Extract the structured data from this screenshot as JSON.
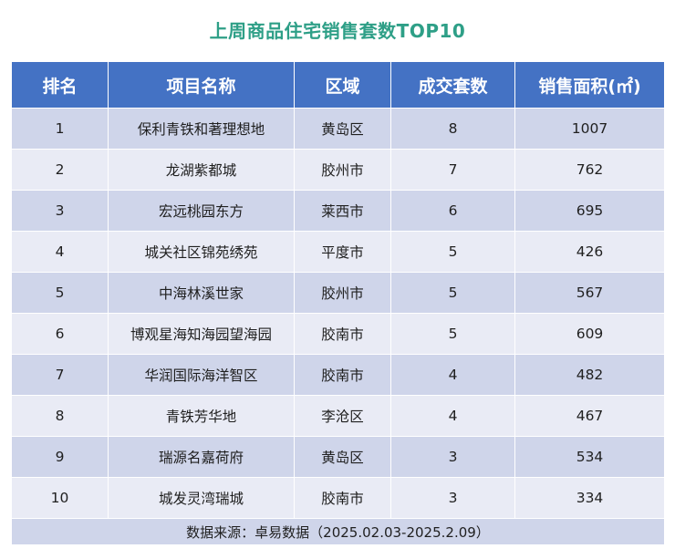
{
  "title": "上周商品住宅销售套数TOP10",
  "chart_data": {
    "type": "table",
    "title": "上周商品住宅销售套数TOP10",
    "columns": [
      "排名",
      "项目名称",
      "区域",
      "成交套数",
      "销售面积(㎡)"
    ],
    "rows": [
      [
        "1",
        "保利青铁和著理想地",
        "黄岛区",
        "8",
        "1007"
      ],
      [
        "2",
        "龙湖紫都城",
        "胶州市",
        "7",
        "762"
      ],
      [
        "3",
        "宏远桃园东方",
        "莱西市",
        "6",
        "695"
      ],
      [
        "4",
        "城关社区锦苑绣苑",
        "平度市",
        "5",
        "426"
      ],
      [
        "5",
        "中海林溪世家",
        "胶州市",
        "5",
        "567"
      ],
      [
        "6",
        "博观星海知海园望海园",
        "胶南市",
        "5",
        "609"
      ],
      [
        "7",
        "华润国际海洋智区",
        "胶南市",
        "4",
        "482"
      ],
      [
        "8",
        "青铁芳华地",
        "李沧区",
        "4",
        "467"
      ],
      [
        "9",
        "瑞源名嘉荷府",
        "黄岛区",
        "3",
        "534"
      ],
      [
        "10",
        "城发灵湾瑞城",
        "胶南市",
        "3",
        "334"
      ]
    ],
    "footnote": "数据来源：卓易数据（2025.02.03-2025.2.09）"
  },
  "colors": {
    "title": "#2e9f87",
    "header_bg": "#4472c4",
    "row_dark": "#cfd5ea",
    "row_light": "#e9ebf5"
  }
}
